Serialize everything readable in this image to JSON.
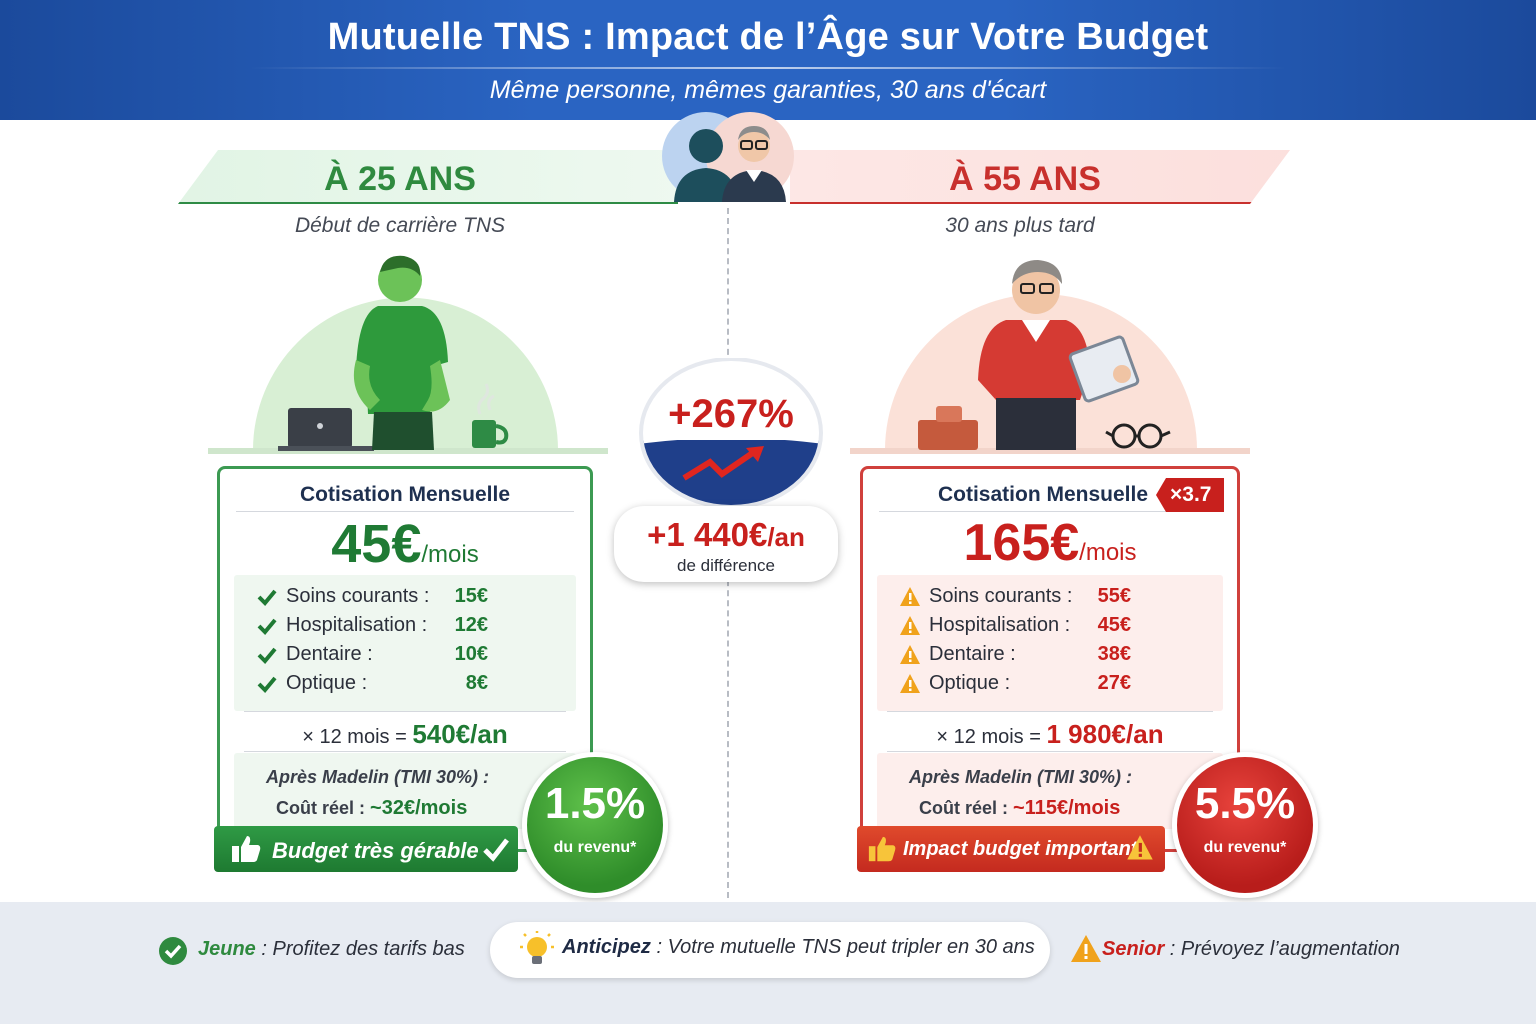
{
  "header": {
    "title": "Mutuelle TNS : Impact de l’Âge sur Votre Budget",
    "subtitle": "Même personne, mêmes garanties, 30 ans d'écart"
  },
  "left": {
    "age": "À 25 ANS",
    "subtitle": "Début de carrière TNS",
    "card_title": "Cotisation Mensuelle",
    "price": "45€",
    "price_unit": "/mois",
    "items": [
      {
        "label": "Soins courants :",
        "value": "15€"
      },
      {
        "label": "Hospitalisation :",
        "value": "12€"
      },
      {
        "label": "Dentaire :",
        "value": "10€"
      },
      {
        "label": "Optique :",
        "value": "8€"
      }
    ],
    "year_prefix": "× 12 mois =",
    "year_value": "540€/an",
    "after_label": "Après Madelin (TMI 30%) :",
    "real_cost_label": "Coût réel :",
    "real_cost_value": "~32€/mois",
    "banner": "Budget très gérable",
    "ratio": "1.5%",
    "ratio_label": "du revenu*"
  },
  "right": {
    "age": "À 55 ANS",
    "subtitle": "30 ans plus tard",
    "card_title": "Cotisation Mensuelle",
    "factor": "×3.7",
    "price": "165€",
    "price_unit": "/mois",
    "items": [
      {
        "label": "Soins courants :",
        "value": "55€"
      },
      {
        "label": "Hospitalisation :",
        "value": "45€"
      },
      {
        "label": "Dentaire :",
        "value": "38€"
      },
      {
        "label": "Optique :",
        "value": "27€"
      }
    ],
    "year_prefix": "× 12 mois =",
    "year_value": "1 980€/an",
    "after_label": "Après Madelin (TMI 30%) :",
    "real_cost_label": "Coût réel :",
    "real_cost_value": "~115€/mois",
    "banner": "Impact budget important",
    "ratio": "5.5%",
    "ratio_label": "du revenu*"
  },
  "center": {
    "increase": "+267%",
    "diff_value": "+1 440€",
    "diff_unit": "/an",
    "diff_label": "de différence"
  },
  "footer": {
    "left_bold": "Jeune",
    "left_text": " : Profitez des tarifs bas",
    "center_bold": "Anticipez",
    "center_text": " : Votre mutuelle TNS peut tripler en 30 ans",
    "right_bold": "Senior",
    "right_text": " : Prévoyez l’augmentation"
  },
  "colors": {
    "header_blue": "#2a64c2",
    "young_green": "#2f8a3f",
    "senior_red": "#c8201d",
    "footer_bg": "#e7ebf2"
  }
}
